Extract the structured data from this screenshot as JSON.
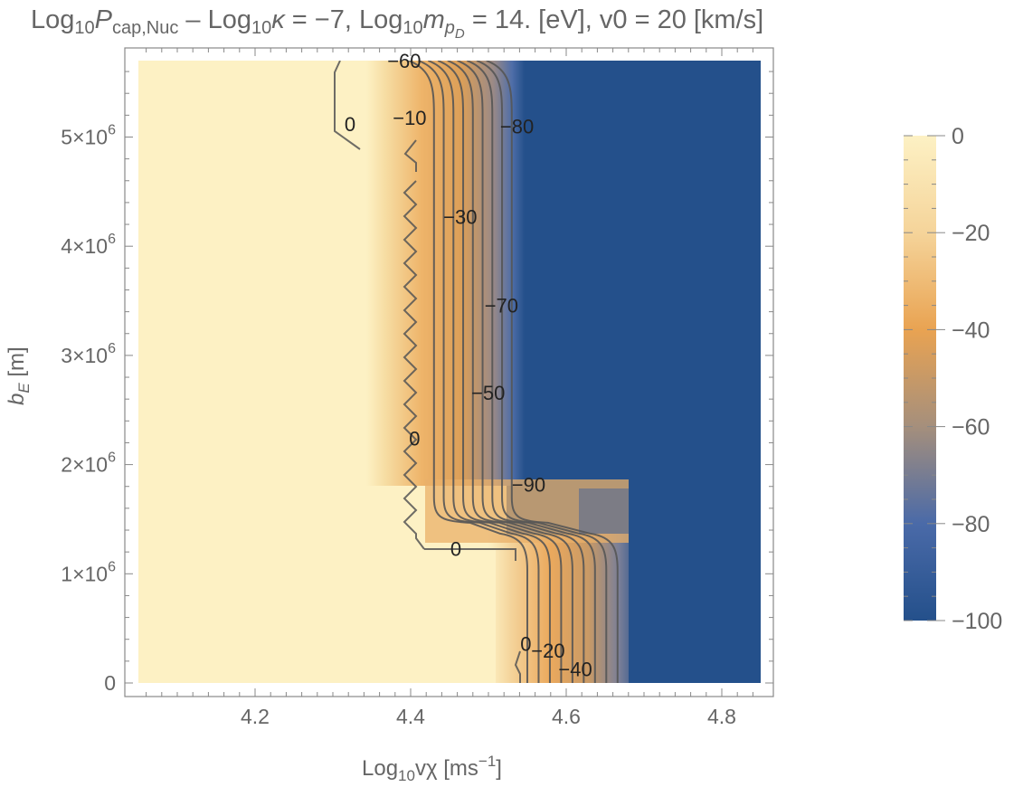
{
  "chart_data": {
    "type": "heatmap",
    "title": {
      "p1": "Log",
      "p1_sub": "10",
      "p2": "P",
      "p2_sub": "cap,Nuc",
      "p3": " – Log",
      "p3_sub": "10",
      "p4": "κ",
      "p5": " = −7, Log",
      "p5_sub": "10",
      "p6": "m",
      "p6_sub": "p",
      "p6_subsub": "D",
      "p7": " = 14. [eV], v0 = 20 [km/s]"
    },
    "xlabel": {
      "pre": "Log",
      "sub": "10",
      "post": "vχ [ms",
      "sup": "−1",
      "end": "]"
    },
    "ylabel": {
      "main": "b",
      "sub": "E",
      "post": " [m]"
    },
    "xlim": [
      4.05,
      4.85
    ],
    "ylim": [
      0,
      5700000
    ],
    "x_ticks": [
      {
        "value": 4.2,
        "label": "4.2"
      },
      {
        "value": 4.4,
        "label": "4.4"
      },
      {
        "value": 4.6,
        "label": "4.6"
      },
      {
        "value": 4.8,
        "label": "4.8"
      }
    ],
    "y_ticks": [
      {
        "value": 0,
        "label": "0"
      },
      {
        "value": 1000000,
        "label": "1×10",
        "exp": "6"
      },
      {
        "value": 2000000,
        "label": "2×10",
        "exp": "6"
      },
      {
        "value": 3000000,
        "label": "3×10",
        "exp": "6"
      },
      {
        "value": 4000000,
        "label": "4×10",
        "exp": "6"
      },
      {
        "value": 5000000,
        "label": "5×10",
        "exp": "6"
      }
    ],
    "colorbar": {
      "range": [
        -100,
        0
      ],
      "ticks": [
        {
          "value": 0,
          "label": "0"
        },
        {
          "value": -20,
          "label": "−20"
        },
        {
          "value": -40,
          "label": "−40"
        },
        {
          "value": -60,
          "label": "−60"
        },
        {
          "value": -80,
          "label": "−80"
        },
        {
          "value": -100,
          "label": "−100"
        }
      ],
      "colors": [
        "#fdf1c4",
        "#f5d49a",
        "#e9a352",
        "#a58f7c",
        "#4a6aa8",
        "#24508b"
      ]
    },
    "contour_levels": [
      -10,
      -20,
      -30,
      -40,
      -50,
      -60,
      -70,
      -80,
      -90
    ],
    "contour_paths": {
      "upper_left": 4.43,
      "upper_spacing": 0.0125,
      "lower_left": 4.55,
      "lower_spacing": 0.0145,
      "step_y": 1550000
    },
    "contour_labels": [
      {
        "text": "−60",
        "x": 4.37,
        "y": 5700000
      },
      {
        "text": "−10",
        "x": 4.377,
        "y": 5180000
      },
      {
        "text": "0",
        "x": 4.315,
        "y": 5120000
      },
      {
        "text": "−80",
        "x": 4.515,
        "y": 5100000
      },
      {
        "text": "−30",
        "x": 4.442,
        "y": 4270000
      },
      {
        "text": "−70",
        "x": 4.495,
        "y": 3460000
      },
      {
        "text": "−50",
        "x": 4.478,
        "y": 2660000
      },
      {
        "text": "0",
        "x": 4.398,
        "y": 2240000
      },
      {
        "text": "−90",
        "x": 4.53,
        "y": 1820000
      },
      {
        "text": "0",
        "x": 4.451,
        "y": 1230000
      },
      {
        "text": "0",
        "x": 4.541,
        "y": 360000
      },
      {
        "text": "−20",
        "x": 4.555,
        "y": 300000
      },
      {
        "text": "−40",
        "x": 4.59,
        "y": 130000
      }
    ],
    "colors": {
      "cream": "#fdf1c4",
      "blue": "#24508b",
      "contour": "#555555"
    }
  }
}
